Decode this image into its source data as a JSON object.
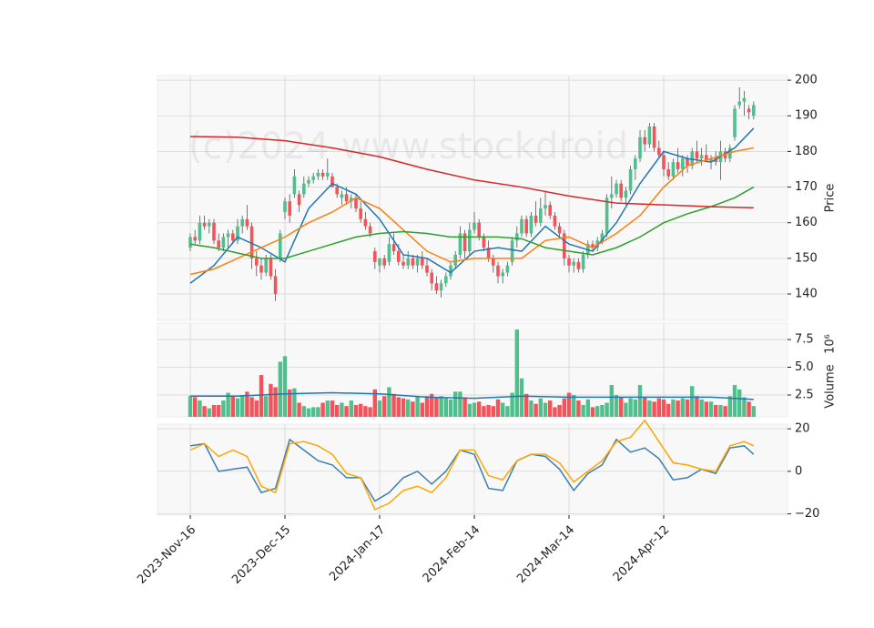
{
  "chart_data": [
    {
      "type": "candlestick",
      "watermark": "(c)2024 www.stockdroid",
      "ylabel": "Price",
      "up_color": "#4fc08d",
      "down_color": "#f5525a",
      "grid": true,
      "xlim": [
        -6.92,
        126.15
      ],
      "ylim": [
        132.6,
        201.3
      ],
      "yticks": [
        140,
        150,
        160,
        170,
        180,
        190,
        200
      ],
      "open": [
        153,
        156,
        155,
        160,
        159,
        160,
        155,
        153,
        156,
        157,
        155,
        159,
        161,
        159,
        150,
        148,
        146,
        150,
        145,
        150,
        163,
        166,
        168,
        168,
        168,
        171,
        172,
        173,
        174,
        173,
        173,
        170,
        167,
        168,
        166,
        167,
        164,
        161,
        159,
        152,
        148,
        150,
        149,
        154,
        152,
        149,
        148,
        150,
        148,
        150,
        148,
        146,
        143,
        141,
        143,
        145,
        148,
        151,
        157,
        152,
        158,
        160,
        156,
        153,
        150,
        148,
        145,
        146,
        149,
        155,
        157,
        161,
        157,
        162,
        160,
        164,
        165,
        162,
        159,
        157,
        150,
        148,
        149,
        147,
        151,
        154,
        153,
        155,
        157,
        167,
        168,
        171,
        167,
        169,
        175,
        178,
        184,
        182,
        187,
        181,
        179,
        175,
        173,
        177,
        175,
        178,
        176,
        180,
        178,
        179,
        177,
        178,
        177,
        180,
        178,
        184,
        193,
        194,
        192,
        190
      ],
      "high": [
        157,
        158,
        162,
        162,
        161,
        161,
        157,
        157,
        158,
        158,
        161,
        162,
        165,
        160,
        152,
        150,
        151,
        151,
        147,
        158,
        167,
        168,
        175,
        169,
        173,
        173,
        174,
        175,
        175,
        178,
        174,
        171,
        169,
        170,
        168,
        168,
        166,
        163,
        160,
        153,
        150,
        151,
        156,
        157,
        154,
        151,
        152,
        151,
        151,
        152,
        150,
        147,
        145,
        144,
        146,
        149,
        152,
        159,
        158,
        160,
        163,
        161,
        157,
        155,
        151,
        149,
        147,
        149,
        156,
        159,
        162,
        162,
        163,
        166,
        167,
        169,
        166,
        163,
        160,
        158,
        151,
        150,
        150,
        152,
        155,
        155,
        156,
        158,
        168,
        173,
        172,
        172,
        170,
        176,
        179,
        186,
        186,
        188,
        188,
        183,
        180,
        177,
        178,
        181,
        179,
        179,
        181,
        183,
        181,
        182,
        179,
        180,
        183,
        181,
        182,
        193,
        198,
        197,
        193,
        194
      ],
      "low": [
        152,
        154,
        154,
        158,
        157,
        154,
        152,
        152,
        153,
        154,
        154,
        157,
        158,
        147,
        145,
        144,
        145,
        144,
        138,
        149,
        161,
        160,
        167,
        163,
        167,
        170,
        171,
        172,
        172,
        172,
        170,
        167,
        165,
        165,
        164,
        163,
        160,
        158,
        156,
        147,
        146,
        147,
        148,
        151,
        148,
        147,
        147,
        147,
        146,
        147,
        145,
        141,
        140,
        139,
        142,
        144,
        147,
        150,
        150,
        151,
        157,
        155,
        152,
        149,
        146,
        143,
        143,
        145,
        148,
        153,
        156,
        156,
        156,
        159,
        159,
        162,
        161,
        158,
        156,
        148,
        146,
        146,
        146,
        146,
        150,
        152,
        152,
        154,
        156,
        164,
        167,
        166,
        165,
        168,
        172,
        177,
        180,
        181,
        180,
        178,
        173,
        172,
        172,
        174,
        173,
        174,
        175,
        177,
        176,
        177,
        175,
        176,
        172,
        177,
        177,
        183,
        192,
        190,
        189,
        189
      ],
      "close": [
        156,
        155,
        160,
        159,
        160,
        155,
        153,
        156,
        157,
        155,
        159,
        161,
        159,
        150,
        148,
        146,
        150,
        145,
        140,
        157,
        166,
        162,
        173,
        165,
        171,
        172,
        173,
        174,
        173,
        174,
        170,
        168,
        168,
        166,
        167,
        164,
        161,
        159,
        157,
        149,
        150,
        148,
        154,
        152,
        149,
        148,
        150,
        148,
        150,
        148,
        146,
        143,
        141,
        143,
        145,
        148,
        151,
        157,
        152,
        158,
        160,
        156,
        153,
        150,
        148,
        145,
        146,
        148,
        155,
        157,
        161,
        157,
        162,
        160,
        164,
        165,
        162,
        159,
        157,
        150,
        148,
        149,
        147,
        151,
        154,
        153,
        155,
        157,
        167,
        168,
        171,
        167,
        169,
        175,
        178,
        184,
        182,
        187,
        181,
        179,
        175,
        173,
        177,
        175,
        178,
        176,
        180,
        178,
        179,
        177.5,
        178,
        177,
        180,
        178,
        181,
        192,
        194,
        195,
        191,
        193
      ],
      "series": [
        {
          "color": "#1f77b4",
          "x": [
            0,
            5,
            10,
            15,
            20,
            25,
            30,
            35,
            40,
            45,
            50,
            55,
            60,
            65,
            70,
            75,
            80,
            85,
            90,
            95,
            100,
            105,
            110,
            115,
            119
          ],
          "values": [
            143,
            148,
            156,
            153,
            149,
            164,
            171,
            168,
            161,
            151,
            150,
            146,
            152,
            153,
            152,
            159,
            154,
            152,
            160,
            171,
            180,
            178,
            177,
            181,
            186.5
          ]
        },
        {
          "color": "#ff7f0e",
          "x": [
            0,
            5,
            10,
            15,
            20,
            25,
            30,
            35,
            40,
            45,
            50,
            55,
            60,
            65,
            70,
            75,
            80,
            85,
            90,
            95,
            100,
            105,
            110,
            115,
            119
          ],
          "values": [
            145.5,
            147,
            150,
            153,
            156,
            160,
            163,
            167,
            164,
            158,
            152,
            149,
            150,
            150,
            150,
            155,
            156,
            153,
            157,
            162,
            170,
            176,
            178,
            180,
            181
          ]
        },
        {
          "color": "#2ca02c",
          "x": [
            0,
            5,
            10,
            15,
            20,
            25,
            30,
            35,
            40,
            45,
            50,
            55,
            60,
            65,
            70,
            75,
            80,
            85,
            90,
            95,
            100,
            105,
            110,
            115,
            119
          ],
          "values": [
            154,
            153,
            151.5,
            150,
            150,
            152,
            154,
            156,
            157,
            157.5,
            157,
            156,
            156,
            156,
            155.5,
            153,
            152,
            151,
            153,
            156,
            160,
            162.5,
            164.5,
            167,
            170
          ]
        },
        {
          "color": "#d62728",
          "x": [
            0,
            10,
            20,
            30,
            40,
            50,
            60,
            70,
            80,
            90,
            100,
            110,
            119
          ],
          "values": [
            184.2,
            184,
            183,
            181,
            178.5,
            175,
            172,
            170,
            167.5,
            165.5,
            165,
            164.5,
            164.2
          ]
        }
      ]
    },
    {
      "type": "bar",
      "ylabel": "Volume",
      "offset_label": "10⁶",
      "grid": true,
      "xlim": [
        -6.92,
        126.15
      ],
      "ylim": [
        0.53,
        8.98
      ],
      "yticks": [
        2.5,
        {
          "value": 5,
          "label": "5.0"
        },
        7.5
      ],
      "values": [
        2.4,
        2.3,
        2.0,
        1.5,
        1.3,
        1.6,
        1.6,
        2.0,
        2.7,
        2.4,
        2.2,
        2.5,
        2.8,
        2.3,
        2.0,
        4.3,
        2.4,
        3.5,
        3.2,
        5.5,
        6.0,
        3.0,
        3.1,
        1.8,
        1.5,
        1.3,
        1.4,
        1.4,
        1.8,
        2.0,
        2.0,
        1.6,
        1.8,
        1.5,
        2.0,
        1.6,
        1.7,
        1.5,
        1.4,
        3.0,
        2.0,
        2.4,
        3.2,
        2.6,
        2.3,
        2.2,
        2.1,
        1.9,
        2.4,
        1.8,
        2.4,
        2.6,
        2.3,
        2.4,
        2.2,
        2.1,
        2.8,
        2.8,
        2.3,
        1.7,
        1.8,
        1.9,
        1.5,
        1.6,
        1.5,
        2.1,
        1.8,
        1.5,
        2.7,
        8.4,
        4.0,
        2.6,
        2.0,
        1.7,
        2.2,
        1.8,
        2.0,
        1.4,
        1.6,
        2.2,
        2.7,
        2.5,
        2.0,
        1.6,
        2.1,
        1.4,
        1.5,
        1.6,
        1.8,
        3.4,
        2.5,
        2.3,
        1.8,
        2.2,
        2.1,
        3.4,
        2.3,
        2.0,
        1.9,
        2.2,
        2.1,
        1.7,
        2.1,
        2.0,
        2.2,
        2.1,
        3.3,
        2.4,
        2.1,
        1.9,
        1.9,
        1.6,
        1.6,
        1.5,
        2.4,
        3.4,
        3.0,
        2.3,
        1.9,
        1.5
      ],
      "series": [
        {
          "color": "#1f77b4",
          "x": [
            0,
            10,
            20,
            30,
            40,
            50,
            60,
            70,
            80,
            90,
            100,
            110,
            119
          ],
          "values": [
            2.4,
            2.4,
            2.6,
            2.7,
            2.6,
            2.3,
            2.2,
            2.4,
            2.3,
            2.3,
            2.3,
            2.3,
            2.1
          ]
        }
      ]
    },
    {
      "type": "line",
      "grid": true,
      "xlim": [
        -6.92,
        126.15
      ],
      "ylim": [
        -20.6,
        22.2
      ],
      "yticks": [
        {
          "value": -20,
          "label": "−20"
        },
        0,
        20
      ],
      "xticks": [
        {
          "value": 0,
          "label": "2023-Nov-16"
        },
        {
          "value": 20,
          "label": "2023-Dec-15"
        },
        {
          "value": 40,
          "label": "2024-Jan-17"
        },
        {
          "value": 60,
          "label": "2024-Feb-14"
        },
        {
          "value": 80,
          "label": "2024-Mar-14"
        },
        {
          "value": 100,
          "label": "2024-Apr-12"
        }
      ],
      "series": [
        {
          "color": "#3b7fb0",
          "x": [
            0,
            3,
            6,
            9,
            12,
            15,
            18,
            21,
            24,
            27,
            30,
            33,
            36,
            39,
            42,
            45,
            48,
            51,
            54,
            57,
            60,
            63,
            66,
            69,
            72,
            75,
            78,
            81,
            84,
            87,
            90,
            93,
            96,
            99,
            102,
            105,
            108,
            111,
            114,
            117,
            119
          ],
          "values": [
            12,
            13,
            0,
            1,
            2,
            -10,
            -8,
            15,
            10,
            5,
            3,
            -3,
            -3,
            -14,
            -10,
            -3,
            0,
            -6,
            0,
            10,
            8,
            -8,
            -9,
            5,
            8,
            7,
            1,
            -9,
            -1,
            3,
            15,
            9,
            11,
            6,
            -4,
            -3,
            1,
            -1,
            11,
            12,
            8
          ]
        },
        {
          "color": "#ffa500",
          "x": [
            0,
            3,
            6,
            9,
            12,
            15,
            18,
            21,
            24,
            27,
            30,
            33,
            36,
            39,
            42,
            45,
            48,
            51,
            54,
            57,
            60,
            63,
            66,
            69,
            72,
            75,
            78,
            81,
            84,
            87,
            90,
            93,
            96,
            99,
            102,
            105,
            108,
            111,
            114,
            117,
            119
          ],
          "values": [
            10,
            13,
            7,
            10,
            7,
            -7,
            -10,
            13,
            14,
            12,
            8,
            -1,
            -3,
            -18,
            -15,
            -9,
            -7,
            -10,
            -3,
            10,
            10,
            -2,
            -4,
            5,
            8,
            8,
            4,
            -5,
            0,
            5,
            14,
            16,
            24,
            14,
            4,
            3,
            1,
            0,
            12,
            14,
            12
          ]
        }
      ]
    }
  ]
}
